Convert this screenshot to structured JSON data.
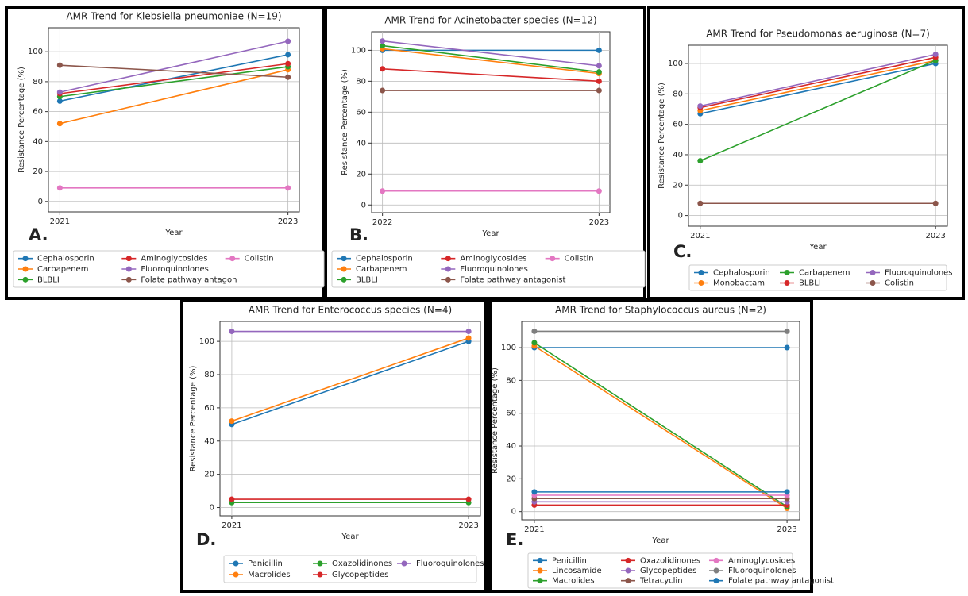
{
  "chart_data": [
    {
      "type": "line",
      "panel_label": "A.",
      "title": "AMR Trend for Klebsiella pneumoniae (N=19)",
      "x_label": "Year",
      "y_label": "Resistance Percentage (%)",
      "x": [
        2021,
        2023
      ],
      "xlim": [
        2020.9,
        2023.1
      ],
      "xticks": [
        2021,
        2023
      ],
      "ylim": [
        -7,
        116
      ],
      "yticks": [
        0,
        20,
        40,
        60,
        80,
        100
      ],
      "grid": true,
      "legend_columns": 3,
      "series": [
        {
          "name": "Cephalosporin",
          "color": "#1f77b4",
          "values": [
            67,
            98
          ]
        },
        {
          "name": "Carbapenem",
          "color": "#ff7f0e",
          "values": [
            52,
            88
          ]
        },
        {
          "name": "BLBLI",
          "color": "#2ca02c",
          "values": [
            70,
            90
          ]
        },
        {
          "name": "Aminoglycosides",
          "color": "#d62728",
          "values": [
            72,
            92
          ]
        },
        {
          "name": "Fluoroquinolones",
          "color": "#9467bd",
          "values": [
            73,
            107
          ]
        },
        {
          "name": "Folate pathway antagon",
          "color": "#8c564b",
          "values": [
            91,
            83
          ]
        },
        {
          "name": "Colistin",
          "color": "#e377c2",
          "values": [
            9,
            9
          ]
        }
      ]
    },
    {
      "type": "line",
      "panel_label": "B.",
      "title": "AMR Trend for Acinetobacter species (N=12)",
      "x_label": "Year",
      "y_label": "Resistance Percentage (%)",
      "x": [
        2022,
        2023
      ],
      "xlim": [
        2021.95,
        2023.05
      ],
      "xticks": [
        2022,
        2023
      ],
      "ylim": [
        -5,
        112
      ],
      "yticks": [
        0,
        20,
        40,
        60,
        80,
        100
      ],
      "grid": true,
      "legend_columns": 3,
      "series": [
        {
          "name": "Cephalosporin",
          "color": "#1f77b4",
          "values": [
            100,
            100
          ]
        },
        {
          "name": "Carbapenem",
          "color": "#ff7f0e",
          "values": [
            101,
            85
          ]
        },
        {
          "name": "BLBLI",
          "color": "#2ca02c",
          "values": [
            103,
            86
          ]
        },
        {
          "name": "Aminoglycosides",
          "color": "#d62728",
          "values": [
            88,
            80
          ]
        },
        {
          "name": "Fluoroquinolones",
          "color": "#9467bd",
          "values": [
            106,
            90
          ]
        },
        {
          "name": "Folate pathway antagonist",
          "color": "#8c564b",
          "values": [
            74,
            74
          ]
        },
        {
          "name": "Colistin",
          "color": "#e377c2",
          "values": [
            9,
            9
          ]
        }
      ]
    },
    {
      "type": "line",
      "panel_label": "C.",
      "title": "AMR Trend for Pseudomonas aeruginosa (N=7)",
      "x_label": "Year",
      "y_label": "Resistance Percentage (%)",
      "x": [
        2021,
        2023
      ],
      "xlim": [
        2020.9,
        2023.1
      ],
      "xticks": [
        2021,
        2023
      ],
      "ylim": [
        -7,
        112
      ],
      "yticks": [
        0,
        20,
        40,
        60,
        80,
        100
      ],
      "grid": true,
      "legend_columns": 3,
      "series": [
        {
          "name": "Cephalosporin",
          "color": "#1f77b4",
          "values": [
            67,
            100
          ]
        },
        {
          "name": "Monobactam",
          "color": "#ff7f0e",
          "values": [
            69,
            102
          ]
        },
        {
          "name": "Carbapenem",
          "color": "#2ca02c",
          "values": [
            36,
            102
          ]
        },
        {
          "name": "BLBLI",
          "color": "#d62728",
          "values": [
            71,
            104
          ]
        },
        {
          "name": "Fluoroquinolones",
          "color": "#9467bd",
          "values": [
            72,
            106
          ]
        },
        {
          "name": "Colistin",
          "color": "#8c564b",
          "values": [
            8,
            8
          ]
        }
      ]
    },
    {
      "type": "line",
      "panel_label": "D.",
      "title": "AMR Trend for Enterococcus species (N=4)",
      "x_label": "Year",
      "y_label": "Resistance Percentage (%)",
      "x": [
        2021,
        2023
      ],
      "xlim": [
        2020.9,
        2023.1
      ],
      "xticks": [
        2021,
        2023
      ],
      "ylim": [
        -5,
        112
      ],
      "yticks": [
        0,
        20,
        40,
        60,
        80,
        100
      ],
      "grid": true,
      "legend_columns": 3,
      "series": [
        {
          "name": "Penicillin",
          "color": "#1f77b4",
          "values": [
            50,
            100
          ]
        },
        {
          "name": "Macrolides",
          "color": "#ff7f0e",
          "values": [
            52,
            102
          ]
        },
        {
          "name": "Oxazolidinones",
          "color": "#2ca02c",
          "values": [
            3,
            3
          ]
        },
        {
          "name": "Glycopeptides",
          "color": "#d62728",
          "values": [
            5,
            5
          ]
        },
        {
          "name": "Fluoroquinolones",
          "color": "#9467bd",
          "values": [
            106,
            106
          ]
        }
      ]
    },
    {
      "type": "line",
      "panel_label": "E.",
      "title": "AMR Trend for Staphylococcus aureus (N=2)",
      "x_label": "Year",
      "y_label": "Resistance Percentage (%)",
      "x": [
        2021,
        2023
      ],
      "xlim": [
        2020.9,
        2023.1
      ],
      "xticks": [
        2021,
        2023
      ],
      "ylim": [
        -5,
        116
      ],
      "yticks": [
        0,
        20,
        40,
        60,
        80,
        100
      ],
      "grid": true,
      "legend_columns": 3,
      "series": [
        {
          "name": "Penicillin",
          "color": "#1f77b4",
          "values": [
            100,
            100
          ]
        },
        {
          "name": "Lincosamide",
          "color": "#ff7f0e",
          "values": [
            101,
            2
          ]
        },
        {
          "name": "Macrolides",
          "color": "#2ca02c",
          "values": [
            103,
            3
          ]
        },
        {
          "name": "Oxazolidinones",
          "color": "#d62728",
          "values": [
            4,
            4
          ]
        },
        {
          "name": "Glycopeptides",
          "color": "#9467bd",
          "values": [
            6,
            6
          ]
        },
        {
          "name": "Tetracyclin",
          "color": "#8c564b",
          "values": [
            8,
            8
          ]
        },
        {
          "name": "Aminoglycosides",
          "color": "#e377c2",
          "values": [
            10,
            10
          ]
        },
        {
          "name": "Fluoroquinolones",
          "color": "#7f7f7f",
          "values": [
            110,
            110
          ]
        },
        {
          "name": "Folate pathway antagonist",
          "color": "#1f77b4",
          "values": [
            12,
            12
          ]
        }
      ]
    }
  ]
}
